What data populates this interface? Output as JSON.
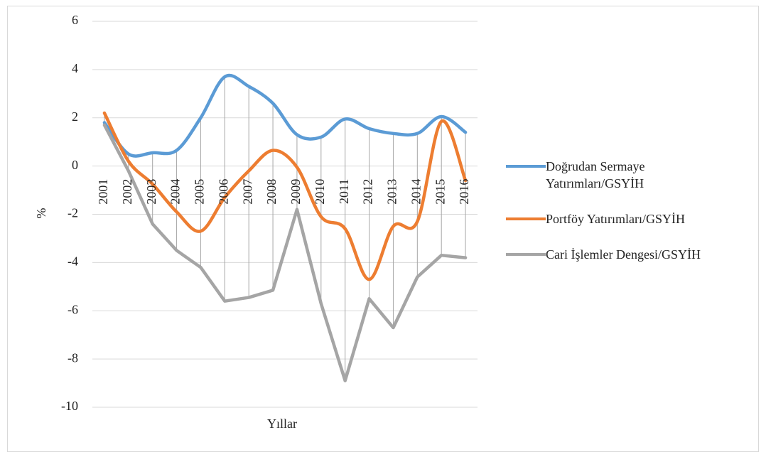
{
  "chart_data": {
    "type": "line",
    "categories": [
      "2001",
      "2002",
      "2003",
      "2004",
      "2005",
      "2006",
      "2007",
      "2008",
      "2009",
      "2010",
      "2011",
      "2012",
      "2013",
      "2014",
      "2015",
      "2016"
    ],
    "series": [
      {
        "name": "Doğrudan Sermaye Yatırımları/GSYİH",
        "color": "#5b9bd5",
        "smooth": true,
        "values": [
          1.8,
          0.5,
          0.55,
          0.65,
          2.0,
          3.7,
          3.3,
          2.6,
          1.3,
          1.2,
          1.95,
          1.55,
          1.35,
          1.35,
          2.05,
          1.4
        ]
      },
      {
        "name": "Portföy Yatırımları/GSYİH",
        "color": "#ed7d31",
        "smooth": true,
        "values": [
          2.2,
          0.2,
          -0.75,
          -1.9,
          -2.7,
          -1.3,
          -0.2,
          0.65,
          -0.05,
          -2.1,
          -2.6,
          -4.7,
          -2.5,
          -2.3,
          1.85,
          -0.6
        ]
      },
      {
        "name": "Cari İşlemler Dengesi/GSYİH",
        "color": "#a5a5a5",
        "smooth": false,
        "values": [
          1.7,
          -0.2,
          -2.4,
          -3.5,
          -4.2,
          -5.6,
          -5.45,
          -5.15,
          -1.8,
          -5.7,
          -8.9,
          -5.5,
          -6.7,
          -4.6,
          -3.7,
          -3.8
        ]
      }
    ],
    "ylim": [
      -10,
      6
    ],
    "yticks": [
      -10,
      -8,
      -6,
      -4,
      -2,
      0,
      2,
      4,
      6
    ],
    "ylabel": "%",
    "xlabel": "Yıllar",
    "grid": true,
    "high_low_lines": true,
    "legend": "right"
  }
}
